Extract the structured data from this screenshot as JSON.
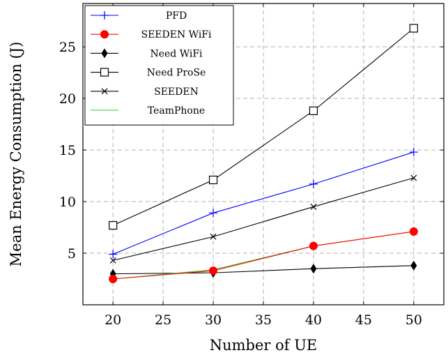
{
  "chart_data": {
    "type": "line",
    "xlabel": "Number of UE",
    "ylabel": "Mean Energy Consumption (J)",
    "xlim": [
      17,
      53
    ],
    "ylim": [
      0,
      29.2
    ],
    "xticks": [
      20,
      25,
      30,
      35,
      40,
      45,
      50
    ],
    "yticks": [
      5,
      10,
      15,
      20,
      25
    ],
    "grid": true,
    "legend_position": "top-left",
    "x": [
      20,
      30,
      40,
      50
    ],
    "series": [
      {
        "name": "PFD",
        "color": "#0000ff",
        "marker": "plus",
        "values": [
          4.9,
          8.9,
          11.7,
          14.8
        ]
      },
      {
        "name": "SEEDEN WiFi",
        "color": "#ff0000",
        "marker": "circle",
        "values": [
          2.5,
          3.3,
          5.7,
          7.1
        ]
      },
      {
        "name": "Need WiFi",
        "color": "#000000",
        "marker": "diamond",
        "values": [
          3.0,
          3.1,
          3.5,
          3.8
        ]
      },
      {
        "name": "Need ProSe",
        "color": "#000000",
        "marker": "square-open",
        "values": [
          7.7,
          12.1,
          18.8,
          26.8
        ]
      },
      {
        "name": "SEEDEN",
        "color": "#000000",
        "marker": "x",
        "values": [
          4.3,
          6.6,
          9.5,
          12.3
        ]
      },
      {
        "name": "TeamPhone",
        "color": "#33cc33",
        "marker": "none",
        "values": [
          2.5,
          3.4,
          5.7,
          7.1
        ]
      }
    ]
  }
}
